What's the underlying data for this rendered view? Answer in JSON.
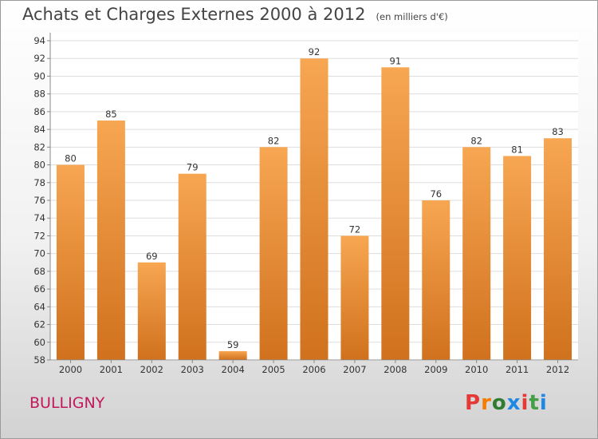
{
  "header": {
    "title": "Achats et Charges Externes 2000 à 2012",
    "subtitle": "(en milliers d'€)"
  },
  "footer": {
    "town": "BULLIGNY",
    "logo_text": "Proxiti",
    "logo_colors": [
      "#e53935",
      "#f57c00",
      "#2e7d32",
      "#1e88e5",
      "#e53935",
      "#43a047",
      "#1e88e5"
    ]
  },
  "chart_data": {
    "type": "bar",
    "title": "Achats et Charges Externes 2000 à 2012",
    "subtitle": "(en milliers d'€)",
    "xlabel": "",
    "ylabel": "",
    "categories": [
      "2000",
      "2001",
      "2002",
      "2003",
      "2004",
      "2005",
      "2006",
      "2007",
      "2008",
      "2009",
      "2010",
      "2011",
      "2012"
    ],
    "values": [
      80,
      85,
      69,
      79,
      59,
      82,
      92,
      72,
      91,
      76,
      82,
      81,
      83
    ],
    "ylim": [
      58,
      94
    ],
    "yticks": [
      58,
      60,
      62,
      64,
      66,
      68,
      70,
      72,
      74,
      76,
      78,
      80,
      82,
      84,
      86,
      88,
      90,
      92,
      94
    ],
    "grid": true,
    "legend": "none",
    "bar_color_top": "#f7a652",
    "bar_color_bottom": "#d0711d"
  }
}
